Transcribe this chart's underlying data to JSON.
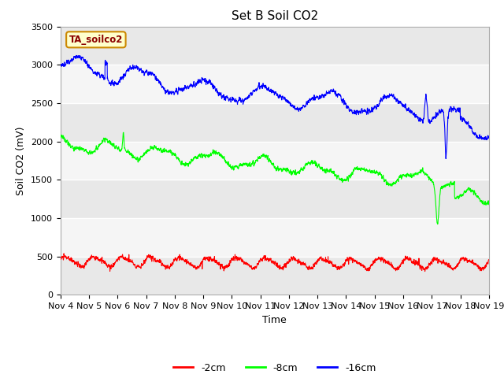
{
  "title": "Set B Soil CO2",
  "xlabel": "Time",
  "ylabel": "Soil CO2 (mV)",
  "ylim": [
    0,
    3500
  ],
  "xlim_days": [
    4,
    19
  ],
  "xtick_labels": [
    "Nov 4",
    "Nov 5",
    "Nov 6",
    "Nov 7",
    "Nov 8",
    "Nov 9",
    "Nov 10",
    "Nov 11",
    "Nov 12",
    "Nov 13",
    "Nov 14",
    "Nov 15",
    "Nov 16",
    "Nov 17",
    "Nov 18",
    "Nov 19"
  ],
  "ytick_values": [
    0,
    500,
    1000,
    1500,
    2000,
    2500,
    3000,
    3500
  ],
  "legend_labels": [
    "-2cm",
    "-8cm",
    "-16cm"
  ],
  "legend_colors": [
    "#ff0000",
    "#00ff00",
    "#0000ff"
  ],
  "box_label": "TA_soilco2",
  "box_facecolor": "#ffffcc",
  "box_edgecolor": "#cc8800",
  "plot_bg_color": "#ffffff",
  "band_color_dark": "#e8e8e8",
  "band_color_light": "#f5f5f5",
  "title_fontsize": 11,
  "label_fontsize": 9,
  "tick_fontsize": 8
}
